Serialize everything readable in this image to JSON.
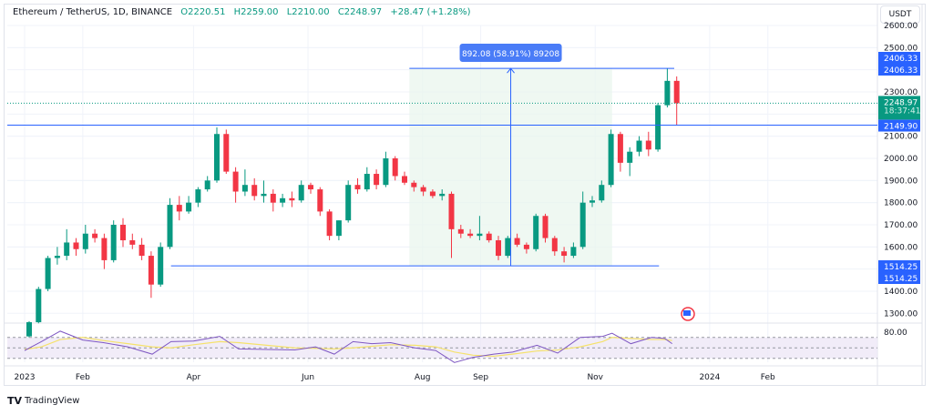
{
  "header": {
    "symbol": "Ethereum / TetherUS, 1D, BINANCE",
    "open": "O2220.51",
    "high": "H2259.00",
    "low": "L2210.00",
    "close": "C2248.97",
    "change": "+28.47 (+1.28%)"
  },
  "currency_button": "USDT",
  "brand": "TradingView",
  "colors": {
    "up": "#089981",
    "down": "#f23645",
    "line": "#2962ff",
    "rsi": "#7e57c2",
    "rsi_ma": "#f5e26b",
    "measure_fill": "#e8f5ec"
  },
  "chart_data": {
    "type": "candlestick",
    "interval": "1D",
    "ylim": [
      1250,
      2620
    ],
    "y_ticks": [
      2600,
      2500,
      2300,
      2100,
      2000,
      1900,
      1800,
      1700,
      1600,
      1400,
      1300
    ],
    "x_ticks": [
      {
        "date": "2023-01-01",
        "label": "2023"
      },
      {
        "date": "2023-02-01",
        "label": "Feb"
      },
      {
        "date": "2023-04-01",
        "label": "Apr"
      },
      {
        "date": "2023-06-01",
        "label": "Jun"
      },
      {
        "date": "2023-08-01",
        "label": "Aug"
      },
      {
        "date": "2023-09-01",
        "label": "Sep"
      },
      {
        "date": "2023-11-01",
        "label": "Nov"
      },
      {
        "date": "2024-01-01",
        "label": "2024"
      },
      {
        "date": "2024-02-01",
        "label": "Feb"
      }
    ],
    "candles": [
      [
        "2023-01-01",
        1196,
        1265,
        1190,
        1260
      ],
      [
        "2023-01-06",
        1260,
        1420,
        1255,
        1410
      ],
      [
        "2023-01-11",
        1410,
        1560,
        1400,
        1550
      ],
      [
        "2023-01-16",
        1550,
        1600,
        1520,
        1560
      ],
      [
        "2023-01-21",
        1560,
        1680,
        1540,
        1620
      ],
      [
        "2023-01-26",
        1620,
        1640,
        1560,
        1590
      ],
      [
        "2023-01-31",
        1590,
        1700,
        1570,
        1660
      ],
      [
        "2023-02-05",
        1660,
        1680,
        1620,
        1640
      ],
      [
        "2023-02-10",
        1640,
        1660,
        1500,
        1540
      ],
      [
        "2023-02-15",
        1540,
        1720,
        1530,
        1700
      ],
      [
        "2023-02-20",
        1700,
        1730,
        1600,
        1630
      ],
      [
        "2023-02-25",
        1630,
        1660,
        1590,
        1610
      ],
      [
        "2023-03-02",
        1610,
        1640,
        1540,
        1560
      ],
      [
        "2023-03-07",
        1560,
        1580,
        1370,
        1430
      ],
      [
        "2023-03-12",
        1430,
        1620,
        1420,
        1600
      ],
      [
        "2023-03-17",
        1600,
        1820,
        1590,
        1790
      ],
      [
        "2023-03-22",
        1790,
        1830,
        1720,
        1760
      ],
      [
        "2023-03-27",
        1760,
        1830,
        1750,
        1800
      ],
      [
        "2023-04-01",
        1800,
        1870,
        1780,
        1860
      ],
      [
        "2023-04-06",
        1860,
        1920,
        1850,
        1900
      ],
      [
        "2023-04-11",
        1900,
        2140,
        1890,
        2110
      ],
      [
        "2023-04-16",
        2110,
        2130,
        1930,
        1940
      ],
      [
        "2023-04-21",
        1940,
        1960,
        1800,
        1850
      ],
      [
        "2023-04-26",
        1850,
        1950,
        1830,
        1880
      ],
      [
        "2023-05-01",
        1880,
        1910,
        1810,
        1830
      ],
      [
        "2023-05-06",
        1830,
        1900,
        1800,
        1840
      ],
      [
        "2023-05-11",
        1840,
        1860,
        1760,
        1800
      ],
      [
        "2023-05-16",
        1800,
        1840,
        1780,
        1820
      ],
      [
        "2023-05-21",
        1820,
        1850,
        1780,
        1810
      ],
      [
        "2023-05-26",
        1810,
        1900,
        1800,
        1880
      ],
      [
        "2023-05-31",
        1880,
        1890,
        1840,
        1860
      ],
      [
        "2023-06-05",
        1860,
        1870,
        1740,
        1760
      ],
      [
        "2023-06-10",
        1760,
        1770,
        1630,
        1650
      ],
      [
        "2023-06-15",
        1650,
        1720,
        1630,
        1720
      ],
      [
        "2023-06-20",
        1720,
        1900,
        1710,
        1880
      ],
      [
        "2023-06-25",
        1880,
        1910,
        1840,
        1860
      ],
      [
        "2023-06-30",
        1860,
        1960,
        1850,
        1930
      ],
      [
        "2023-07-05",
        1930,
        1950,
        1860,
        1880
      ],
      [
        "2023-07-10",
        1880,
        2030,
        1870,
        2000
      ],
      [
        "2023-07-15",
        2000,
        2010,
        1900,
        1920
      ],
      [
        "2023-07-20",
        1920,
        1940,
        1880,
        1890
      ],
      [
        "2023-07-25",
        1890,
        1900,
        1850,
        1870
      ],
      [
        "2023-07-30",
        1870,
        1880,
        1830,
        1850
      ],
      [
        "2023-08-04",
        1850,
        1860,
        1820,
        1830
      ],
      [
        "2023-08-09",
        1830,
        1860,
        1810,
        1840
      ],
      [
        "2023-08-14",
        1840,
        1850,
        1550,
        1680
      ],
      [
        "2023-08-19",
        1680,
        1700,
        1640,
        1660
      ],
      [
        "2023-08-24",
        1660,
        1680,
        1640,
        1650
      ],
      [
        "2023-08-29",
        1650,
        1740,
        1630,
        1660
      ],
      [
        "2023-09-03",
        1660,
        1670,
        1620,
        1630
      ],
      [
        "2023-09-08",
        1630,
        1650,
        1540,
        1560
      ],
      [
        "2023-09-13",
        1560,
        1650,
        1550,
        1640
      ],
      [
        "2023-09-18",
        1640,
        1660,
        1600,
        1610
      ],
      [
        "2023-09-23",
        1610,
        1620,
        1570,
        1590
      ],
      [
        "2023-09-28",
        1590,
        1750,
        1580,
        1740
      ],
      [
        "2023-10-03",
        1740,
        1750,
        1620,
        1640
      ],
      [
        "2023-10-08",
        1640,
        1650,
        1560,
        1580
      ],
      [
        "2023-10-13",
        1580,
        1600,
        1530,
        1560
      ],
      [
        "2023-10-18",
        1560,
        1620,
        1550,
        1600
      ],
      [
        "2023-10-23",
        1600,
        1850,
        1590,
        1800
      ],
      [
        "2023-10-28",
        1800,
        1830,
        1780,
        1810
      ],
      [
        "2023-11-02",
        1810,
        1900,
        1800,
        1880
      ],
      [
        "2023-11-07",
        1880,
        2130,
        1870,
        2110
      ],
      [
        "2023-11-12",
        2110,
        2120,
        1940,
        1980
      ],
      [
        "2023-11-17",
        1980,
        2050,
        1920,
        2030
      ],
      [
        "2023-11-22",
        2030,
        2100,
        2010,
        2080
      ],
      [
        "2023-11-27",
        2080,
        2120,
        2010,
        2040
      ],
      [
        "2023-12-02",
        2040,
        2250,
        2030,
        2240
      ],
      [
        "2023-12-07",
        2240,
        2406,
        2230,
        2350
      ],
      [
        "2023-12-12",
        2350,
        2370,
        2150,
        2248.97
      ]
    ],
    "horizontal_lines": [
      {
        "price": 2149.9,
        "label": "2149.90"
      }
    ],
    "last_price": {
      "price": 2248.97,
      "label": "2248.97",
      "countdown": "18:37:41"
    },
    "support_line": {
      "price": 1514.25,
      "from": "2023-03-20",
      "to": "2023-12-05",
      "labels": [
        "1514.25",
        "1514.25"
      ]
    },
    "measure": {
      "from": "2023-07-25",
      "to": "2023-11-10",
      "low": 1514.25,
      "high": 2406.33,
      "label": "892.08 (58.91%) 89208",
      "labels": [
        "2406.33",
        "2406.33"
      ]
    },
    "rsi": {
      "ylim": [
        15,
        85
      ],
      "level_label": "80.00",
      "bands": [
        70,
        50,
        30
      ],
      "dates": [
        "2023-01-01",
        "2023-01-10",
        "2023-01-20",
        "2023-02-01",
        "2023-02-12",
        "2023-02-25",
        "2023-03-10",
        "2023-03-20",
        "2023-04-01",
        "2023-04-15",
        "2023-04-25",
        "2023-05-10",
        "2023-05-25",
        "2023-06-05",
        "2023-06-15",
        "2023-06-25",
        "2023-07-05",
        "2023-07-15",
        "2023-07-28",
        "2023-08-08",
        "2023-08-18",
        "2023-08-28",
        "2023-09-08",
        "2023-09-18",
        "2023-10-01",
        "2023-10-12",
        "2023-10-24",
        "2023-11-05",
        "2023-11-10",
        "2023-11-20",
        "2023-12-01",
        "2023-12-08",
        "2023-12-12"
      ],
      "values": [
        45,
        62,
        82,
        65,
        60,
        52,
        38,
        62,
        63,
        72,
        48,
        47,
        46,
        52,
        38,
        62,
        58,
        60,
        50,
        45,
        22,
        32,
        38,
        42,
        55,
        40,
        70,
        72,
        78,
        58,
        70,
        68,
        58
      ],
      "ma": [
        47,
        52,
        66,
        70,
        64,
        58,
        52,
        50,
        56,
        62,
        60,
        55,
        50,
        49,
        48,
        50,
        53,
        56,
        55,
        52,
        42,
        36,
        34,
        38,
        44,
        46,
        52,
        62,
        70,
        68,
        66,
        66,
        64
      ]
    }
  }
}
